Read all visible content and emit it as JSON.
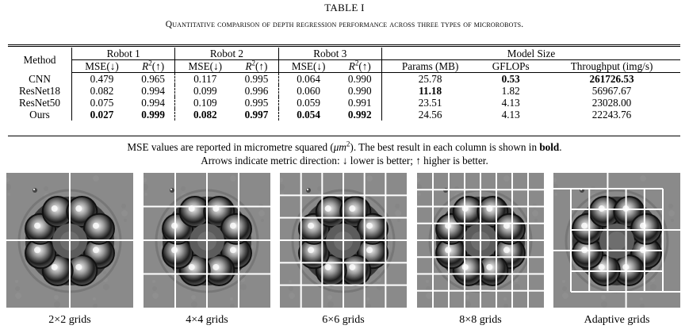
{
  "table": {
    "title": "TABLE I",
    "caption": "Quantitative comparison of depth regression performance across three types of microrobots.",
    "method_header": "Method",
    "group_headers": [
      "Robot 1",
      "Robot 2",
      "Robot 3",
      "Model Size"
    ],
    "sub_headers": {
      "mse": "MSE(↓)",
      "r2_base": "R",
      "r2_sup": "2",
      "r2_tail": "(↑)",
      "params": "Params (MB)",
      "gflops": "GFLOPs",
      "throughput": "Throughput (img/s)"
    },
    "rows": [
      {
        "method": "CNN",
        "cells": [
          "0.479",
          "0.965",
          "0.117",
          "0.995",
          "0.064",
          "0.990",
          "25.78",
          "0.53",
          "261726.53"
        ],
        "bold": [
          7,
          8
        ]
      },
      {
        "method": "ResNet18",
        "cells": [
          "0.082",
          "0.994",
          "0.099",
          "0.996",
          "0.060",
          "0.990",
          "11.18",
          "1.82",
          "56967.67"
        ],
        "bold": [
          6
        ]
      },
      {
        "method": "ResNet50",
        "cells": [
          "0.075",
          "0.994",
          "0.109",
          "0.995",
          "0.059",
          "0.991",
          "23.51",
          "4.13",
          "23028.00"
        ],
        "bold": []
      },
      {
        "method": "Ours",
        "cells": [
          "0.027",
          "0.999",
          "0.082",
          "0.997",
          "0.054",
          "0.992",
          "24.56",
          "4.13",
          "22243.76"
        ],
        "bold": [
          0,
          1,
          2,
          3,
          4,
          5
        ]
      }
    ],
    "note_line1_a": "MSE values are reported in micrometre squared (",
    "note_line1_unit": "μm",
    "note_line1_sup": "2",
    "note_line1_b": "). The best result in each column is shown in ",
    "note_line1_bold": "bold",
    "note_line1_end": ".",
    "note_line2": "Arrows indicate metric direction: ↓ lower is better; ↑ higher is better."
  },
  "figure": {
    "panels": [
      {
        "label": "2×2 grids",
        "grid": 2
      },
      {
        "label": "4×4 grids",
        "grid": 4
      },
      {
        "label": "6×6 grids",
        "grid": 6
      },
      {
        "label": "8×8 grids",
        "grid": 8
      },
      {
        "label": "Adaptive grids",
        "grid": "adaptive"
      }
    ],
    "colors": {
      "background": "#8a8a8a",
      "grid_line": "#ffffff"
    }
  }
}
